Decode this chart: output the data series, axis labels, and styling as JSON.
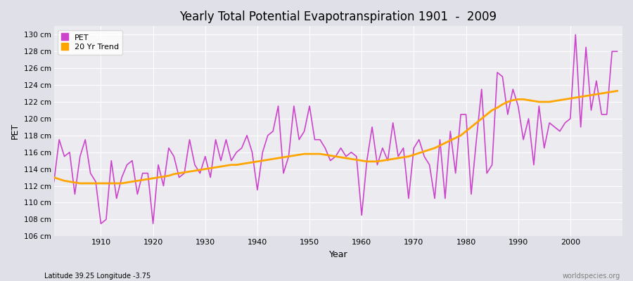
{
  "title": "Yearly Total Potential Evapotranspiration 1901  -  2009",
  "xlabel": "Year",
  "ylabel": "PET",
  "subtitle": "Latitude 39.25 Longitude -3.75",
  "watermark": "worldspecies.org",
  "pet_color": "#CC44CC",
  "trend_color": "#FFA500",
  "bg_color": "#E0E0E8",
  "plot_bg_color": "#EBEBF0",
  "ylim": [
    106,
    131
  ],
  "yticks": [
    106,
    108,
    110,
    112,
    114,
    116,
    118,
    120,
    122,
    124,
    126,
    128,
    130
  ],
  "xlim": [
    1901,
    2010
  ],
  "xticks": [
    1910,
    1920,
    1930,
    1940,
    1950,
    1960,
    1970,
    1980,
    1990,
    2000
  ],
  "years": [
    1901,
    1902,
    1903,
    1904,
    1905,
    1906,
    1907,
    1908,
    1909,
    1910,
    1911,
    1912,
    1913,
    1914,
    1915,
    1916,
    1917,
    1918,
    1919,
    1920,
    1921,
    1922,
    1923,
    1924,
    1925,
    1926,
    1927,
    1928,
    1929,
    1930,
    1931,
    1932,
    1933,
    1934,
    1935,
    1936,
    1937,
    1938,
    1939,
    1940,
    1941,
    1942,
    1943,
    1944,
    1945,
    1946,
    1947,
    1948,
    1949,
    1950,
    1951,
    1952,
    1953,
    1954,
    1955,
    1956,
    1957,
    1958,
    1959,
    1960,
    1961,
    1962,
    1963,
    1964,
    1965,
    1966,
    1967,
    1968,
    1969,
    1970,
    1971,
    1972,
    1973,
    1974,
    1975,
    1976,
    1977,
    1978,
    1979,
    1980,
    1981,
    1982,
    1983,
    1984,
    1985,
    1986,
    1987,
    1988,
    1989,
    1990,
    1991,
    1992,
    1993,
    1994,
    1995,
    1996,
    1997,
    1998,
    1999,
    2000,
    2001,
    2002,
    2003,
    2004,
    2005,
    2006,
    2007,
    2008,
    2009
  ],
  "pet": [
    112.5,
    117.5,
    115.5,
    116.0,
    111.0,
    115.5,
    117.5,
    113.5,
    112.5,
    107.5,
    108.0,
    115.0,
    110.5,
    113.0,
    114.5,
    115.0,
    111.0,
    113.5,
    113.5,
    107.5,
    114.5,
    112.0,
    116.5,
    115.5,
    113.0,
    113.5,
    117.5,
    114.5,
    113.5,
    115.5,
    113.0,
    117.5,
    115.0,
    117.5,
    115.0,
    116.0,
    116.5,
    118.0,
    116.0,
    111.5,
    116.0,
    118.0,
    118.5,
    121.5,
    113.5,
    115.5,
    121.5,
    117.5,
    118.5,
    121.5,
    117.5,
    117.5,
    116.5,
    115.0,
    115.5,
    116.5,
    115.5,
    116.0,
    115.5,
    108.5,
    115.0,
    119.0,
    114.5,
    116.5,
    115.0,
    119.5,
    115.5,
    116.5,
    110.5,
    116.5,
    117.5,
    115.5,
    114.5,
    110.5,
    117.5,
    110.5,
    118.5,
    113.5,
    120.5,
    120.5,
    111.0,
    117.5,
    123.5,
    113.5,
    114.5,
    125.5,
    125.0,
    120.5,
    123.5,
    121.5,
    117.5,
    120.0,
    114.5,
    121.5,
    116.5,
    119.5,
    119.0,
    118.5,
    119.5,
    120.0,
    130.0,
    119.0,
    128.5,
    121.0,
    124.5,
    120.5,
    120.5,
    128.0,
    128.0
  ],
  "trend": [
    113.0,
    112.8,
    112.6,
    112.5,
    112.4,
    112.3,
    112.3,
    112.3,
    112.3,
    112.3,
    112.3,
    112.3,
    112.3,
    112.3,
    112.4,
    112.5,
    112.6,
    112.7,
    112.8,
    112.9,
    113.0,
    113.1,
    113.2,
    113.4,
    113.5,
    113.6,
    113.7,
    113.8,
    113.9,
    114.0,
    114.1,
    114.2,
    114.3,
    114.4,
    114.5,
    114.5,
    114.6,
    114.7,
    114.8,
    114.9,
    115.0,
    115.1,
    115.2,
    115.3,
    115.4,
    115.5,
    115.6,
    115.7,
    115.8,
    115.8,
    115.8,
    115.8,
    115.7,
    115.6,
    115.5,
    115.4,
    115.3,
    115.2,
    115.1,
    115.0,
    114.9,
    114.9,
    114.9,
    115.0,
    115.1,
    115.2,
    115.3,
    115.4,
    115.5,
    115.7,
    115.9,
    116.1,
    116.3,
    116.5,
    116.8,
    117.1,
    117.4,
    117.7,
    118.0,
    118.5,
    119.0,
    119.5,
    120.0,
    120.5,
    121.0,
    121.3,
    121.7,
    122.0,
    122.2,
    122.3,
    122.3,
    122.2,
    122.1,
    122.0,
    122.0,
    122.0,
    122.1,
    122.2,
    122.3,
    122.4,
    122.5,
    122.6,
    122.7,
    122.8,
    122.9,
    123.0,
    123.1,
    123.2,
    123.3
  ]
}
